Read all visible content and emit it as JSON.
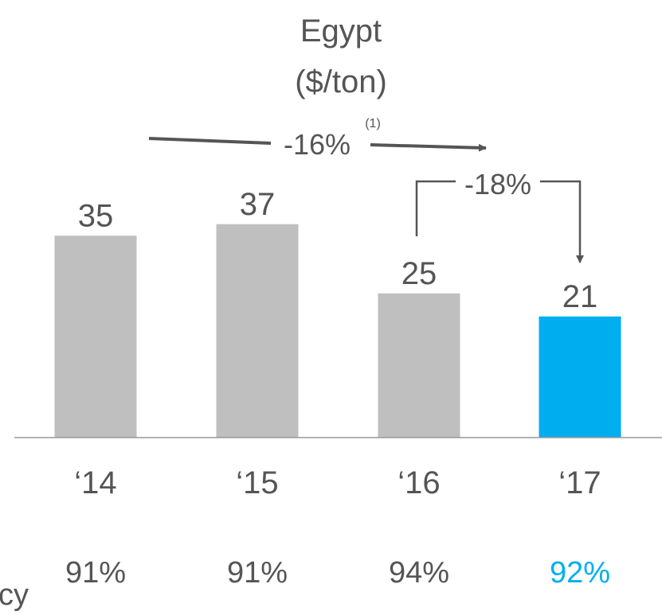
{
  "chart_data": {
    "type": "bar",
    "title": "Egypt",
    "subtitle": "($/ton)",
    "categories": [
      "‘14",
      "‘15",
      "‘16",
      "‘17"
    ],
    "values": [
      35,
      37,
      25,
      21
    ],
    "ylim": [
      0,
      40
    ],
    "grid": false,
    "bar_colors": [
      "#bfbfbf",
      "#bfbfbf",
      "#bfbfbf",
      "#00aeef"
    ],
    "annotations": {
      "overall_change": "-16%",
      "overall_change_footnote": "(1)",
      "last_year_change": "-18%"
    },
    "secondary_row": {
      "label_fragment": "cy",
      "values": [
        "91%",
        "91%",
        "94%",
        "92%"
      ],
      "highlight_color": "#00aeef",
      "normal_color": "#555555"
    }
  }
}
